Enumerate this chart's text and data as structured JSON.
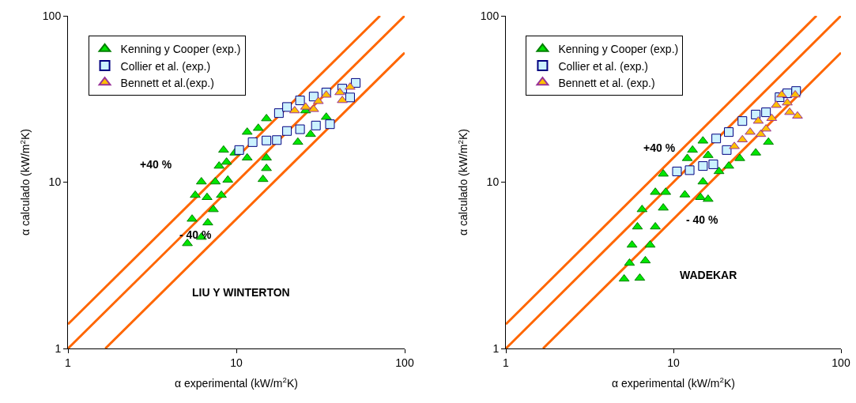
{
  "chart_data": [
    {
      "type": "scatter",
      "xlabel": "α experimental (kW/m$^{2}$K)",
      "ylabel": "α calculado (kW/m$^{2}$K)",
      "log": "xy",
      "xlim": [
        1,
        100
      ],
      "ylim": [
        1,
        100
      ],
      "xticks": [
        1,
        10,
        100
      ],
      "yticks": [
        1,
        10,
        100
      ],
      "grid": false,
      "legend": "top left",
      "annotations": [
        "+40 %",
        "- 40 %",
        "LIU Y WINTERTON"
      ],
      "series": [
        {
          "type": "line",
          "color": "#ff6600",
          "marker": "none",
          "x": [
            1,
            71.4
          ],
          "values": [
            1.4,
            100
          ]
        },
        {
          "type": "line",
          "color": "#ff6600",
          "marker": "none",
          "x": [
            1,
            100
          ],
          "values": [
            1,
            100
          ]
        },
        {
          "type": "line",
          "color": "#ff6600",
          "marker": "none",
          "x": [
            1.667,
            100
          ],
          "values": [
            1,
            60
          ]
        },
        {
          "name": "Kenning y Cooper (exp.)",
          "color": "#00e600",
          "marker": "triangle",
          "x": [
            5.12,
            6.2,
            5.46,
            6.77,
            7.3,
            5.7,
            6.7,
            8.15,
            6.2,
            7.5,
            8.9,
            7.9,
            8.75,
            8.4,
            9.8,
            11.6,
            13.5,
            15.1,
            14.4,
            15.1,
            15.1,
            11.6,
            23.2,
            27.6,
            34.2,
            25.8
          ],
          "values": [
            4.28,
            4.67,
            6.0,
            5.7,
            6.85,
            8.35,
            8.1,
            8.35,
            10.05,
            10.05,
            10.3,
            12.5,
            13.2,
            15.6,
            15.0,
            20.0,
            21.1,
            24.1,
            10.4,
            14.0,
            12.1,
            14.0,
            17.4,
            19.4,
            24.6,
            26.9
          ]
        },
        {
          "name": "Collier et al. (exp.)",
          "color": "#ccf2ff",
          "marker": "square",
          "x": [
            10.4,
            12.5,
            15.1,
            17.4,
            20.0,
            23.9,
            29.7,
            36.0,
            17.9,
            20.0,
            23.9,
            28.8,
            34.2,
            42.6,
            51.2,
            47.4
          ],
          "values": [
            15.6,
            17.4,
            17.8,
            17.9,
            20.3,
            20.8,
            21.9,
            22.3,
            26.0,
            28.3,
            31.0,
            32.7,
            34.6,
            36.5,
            39.5,
            32.3
          ]
        },
        {
          "name": "Bennett et al.(exp.)",
          "color": "#ffc000",
          "marker": "triangle",
          "x": [
            22.2,
            25.8,
            30.7,
            34.2,
            41.2,
            47.4,
            42.6,
            28.8
          ],
          "values": [
            26.9,
            28.3,
            30.6,
            33.4,
            34.6,
            37.3,
            31.0,
            27.4
          ]
        }
      ]
    },
    {
      "type": "scatter",
      "xlabel": "α experimental (kW/m$^{2}$K)",
      "ylabel": "α calculado (kW/m$^{2}$K)",
      "log": "xy",
      "xlim": [
        1,
        100
      ],
      "ylim": [
        1,
        100
      ],
      "xticks": [
        1,
        10,
        100
      ],
      "yticks": [
        1,
        10,
        100
      ],
      "grid": false,
      "legend": "top left",
      "annotations": [
        "+40 %",
        "- 40 %",
        "WADEKAR"
      ],
      "series": [
        {
          "type": "line",
          "color": "#ff6600",
          "marker": "none",
          "x": [
            1,
            71.4
          ],
          "values": [
            1.4,
            100
          ]
        },
        {
          "type": "line",
          "color": "#ff6600",
          "marker": "none",
          "x": [
            1,
            100
          ],
          "values": [
            1,
            100
          ]
        },
        {
          "type": "line",
          "color": "#ff6600",
          "marker": "none",
          "x": [
            1.667,
            100
          ],
          "values": [
            1,
            60
          ]
        },
        {
          "name": "Kenning y Cooper (exp.)",
          "color": "#00e600",
          "marker": "triangle",
          "x": [
            5.08,
            6.3,
            5.47,
            6.8,
            5.66,
            7.26,
            6.1,
            7.8,
            6.5,
            8.7,
            7.8,
            9.0,
            8.7,
            11.7,
            14.5,
            16.1,
            15.0,
            12.1,
            13.0,
            16.1,
            15.0,
            18.7,
            21.4,
            24.9,
            31.0,
            36.9
          ],
          "values": [
            2.62,
            2.65,
            3.26,
            3.37,
            4.19,
            4.19,
            5.39,
            5.39,
            6.85,
            7.0,
            8.7,
            8.7,
            11.2,
            8.4,
            8.1,
            7.9,
            10.05,
            13.9,
            15.6,
            14.5,
            17.7,
            11.6,
            12.5,
            13.9,
            15.0,
            17.4
          ]
        },
        {
          "name": "Collier et al. (exp.)",
          "color": "#ccf2ff",
          "marker": "square",
          "x": [
            10.5,
            12.5,
            15.0,
            17.3,
            18.0,
            21.4,
            25.8,
            31.0,
            35.7,
            20.8,
            43.0,
            47.8,
            54.0
          ],
          "values": [
            11.6,
            11.8,
            12.5,
            12.8,
            18.3,
            20.0,
            23.3,
            25.5,
            26.3,
            15.6,
            32.4,
            34.2,
            35.3
          ]
        },
        {
          "name": "Bennett et al. (exp.)",
          "color": "#ffc000",
          "marker": "triangle",
          "x": [
            23.1,
            25.8,
            28.7,
            33.2,
            35.7,
            32.1,
            38.6,
            41.1,
            47.8,
            49.4,
            55.0,
            53.3,
            44.3
          ],
          "values": [
            16.4,
            18.0,
            20.0,
            19.4,
            20.9,
            23.3,
            24.2,
            29.0,
            30.0,
            26.3,
            25.0,
            33.5,
            33.5
          ]
        }
      ]
    }
  ]
}
